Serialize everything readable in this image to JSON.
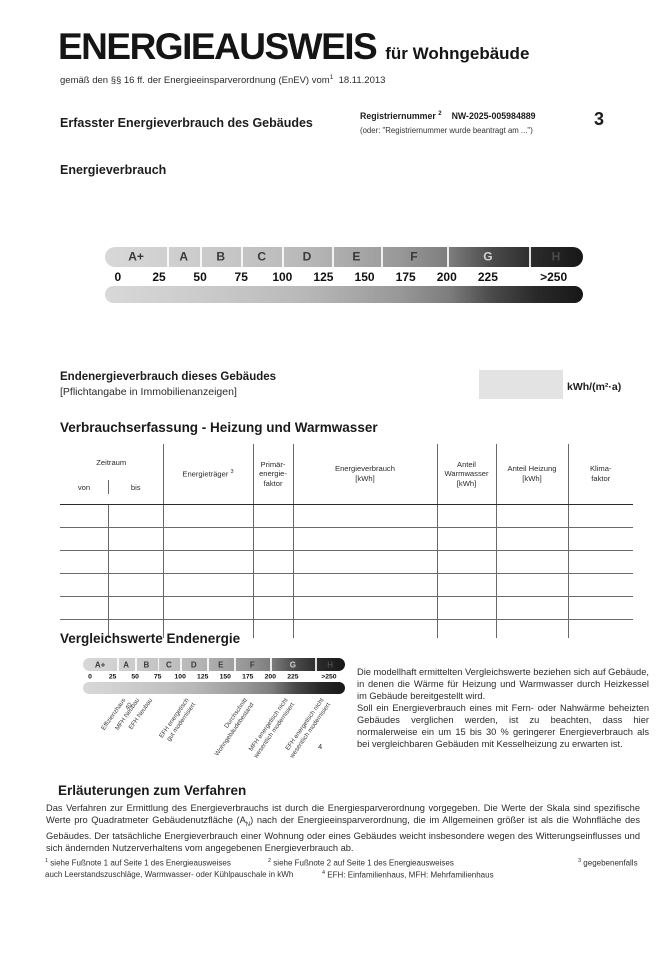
{
  "header": {
    "title": "ENERGIEAUSWEIS",
    "title_suffix": "für Wohngebäude",
    "subtitle_pre": "gemäß den §§ 16 ff. der Energieeinsparverordnung (EnEV) vom",
    "subtitle_sup": "1",
    "subtitle_date": "18.11.2013",
    "page_number": "3"
  },
  "section": {
    "title": "Erfasster Energieverbrauch des Gebäudes",
    "registration_label": "Registriernummer",
    "registration_sup": "2",
    "registration_number": "NW-2025-005984889",
    "registration_note": "(oder: \"Registriernummer wurde beantragt am ...\")",
    "consumption_heading": "Energieverbrauch"
  },
  "scale": {
    "classes": [
      "A+",
      "A",
      "B",
      "C",
      "D",
      "E",
      "F",
      "G",
      "H"
    ],
    "class_bounds": [
      0,
      30,
      50,
      75,
      100,
      130,
      160,
      200,
      250,
      290
    ],
    "ticks": [
      "0",
      "25",
      "50",
      "75",
      "100",
      "125",
      "150",
      "175",
      "200",
      "225",
      ">250"
    ],
    "tick_values": [
      0,
      25,
      50,
      75,
      100,
      125,
      150,
      175,
      200,
      225,
      265
    ]
  },
  "end_energy": {
    "label": "Endenergieverbrauch dieses Gebäudes",
    "sublabel": "[Pflichtangabe in Immobilienanzeigen]",
    "value": "",
    "unit": "kWh/(m²·a)"
  },
  "table": {
    "title": "Verbrauchserfassung - Heizung und Warmwasser",
    "header": {
      "zeitraum": "Zeitraum",
      "von": "von",
      "bis": "bis",
      "energietraeger": "Energieträger",
      "energietraeger_sup": "3",
      "primaerfaktor": "Primär-\nenergie-\nfaktor",
      "energieverbrauch": "Energieverbrauch\n[kWh]",
      "anteil_warmwasser": "Anteil\nWarmwasser\n[kWh]",
      "anteil_heizung": "Anteil Heizung\n[kWh]",
      "klimafaktor": "Klima-\nfaktor"
    },
    "empty_row_count": 5,
    "column_count": 8,
    "rows": []
  },
  "comparison": {
    "title": "Vergleichswerte Endenergie",
    "markers": [
      {
        "label": "Effizienzhaus 40",
        "value": 35
      },
      {
        "label": "MFH Neubau",
        "value": 50
      },
      {
        "label": "EFH Neubau",
        "value": 65
      },
      {
        "label": "EFH energetisch\ngut modernisiert",
        "value": 105
      },
      {
        "label": "Durchschnitt\nWohngebäudebestand",
        "value": 170
      },
      {
        "label": "MFH energetisch nicht\nwesentlich modernisiert",
        "value": 215
      },
      {
        "label": "EFH energetisch nicht\nwesentlich modernisiert",
        "value": 255
      }
    ],
    "footnote_ref": "4",
    "paragraph1": "Die modellhaft ermittelten Vergleichswerte beziehen sich auf Gebäude, in denen die Wärme für Heizung und Warmwasser durch Heizkessel im Gebäude bereitgestellt wird.",
    "paragraph2": "Soll ein Energieverbrauch eines mit Fern- oder Nahwärme beheizten Gebäudes verglichen werden, ist zu beachten, dass hier normalerweise ein um 15 bis 30 % geringerer Energieverbrauch als bei vergleichbaren Gebäuden mit Kesselheizung zu erwarten ist."
  },
  "explanations": {
    "title": "Erläuterungen zum Verfahren",
    "body_pre_sub": "Das Verfahren zur Ermittlung des Energieverbrauchs ist durch die Energiesparverordnung vorgegeben. Die Werte der Skala sind spezifische Werte pro Quadratmeter Gebäudenutzfläche (A",
    "body_sub": "N",
    "body_post_sub": ") nach der Energieeinsparverordnung, die im Allgemeinen größer ist als die Wohnfläche des Gebäudes. Der tatsächliche Energieverbrauch einer Wohnung oder eines Gebäudes weicht insbesondere wegen des Witterungseinflusses und sich ändernden Nutzerverhaltens vom angegebenen Energieverbrauch ab."
  },
  "footnotes": {
    "fn1_sup": "1",
    "fn1_text": "siehe Fußnote 1 auf Seite 1 des Energieausweises",
    "fn2_sup": "2",
    "fn2_text": "siehe Fußnote 2 auf Seite 1 des Energieausweises",
    "fn3_sup": "3",
    "fn3_text": "gegebenenfalls",
    "fn3_cont": "auch Leerstandszuschläge, Warmwasser- oder Kühlpauschale in kWh",
    "fn4_sup": "4",
    "fn4_text": "EFH: Einfamilienhaus, MFH: Mehrfamilienhaus"
  }
}
